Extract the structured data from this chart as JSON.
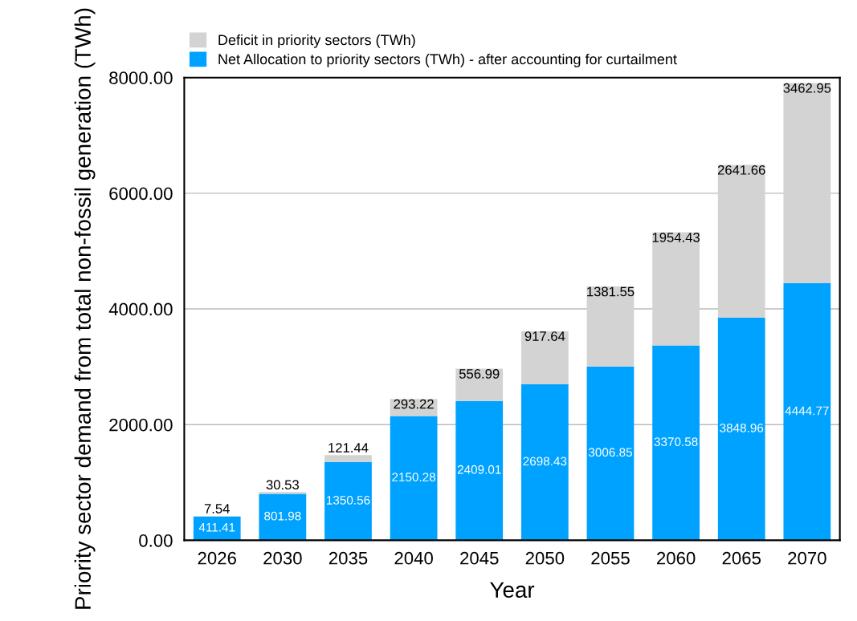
{
  "chart_data": {
    "type": "bar",
    "stacked": true,
    "xlabel": "Year",
    "ylabel": "Priority sector demand from total non-fossil generation (TWh)",
    "categories": [
      "2026",
      "2030",
      "2035",
      "2040",
      "2045",
      "2050",
      "2055",
      "2060",
      "2065",
      "2070"
    ],
    "series": [
      {
        "name": "Net Allocation to priority sectors (TWh) - after accounting for curtailment",
        "color": "#00a2ff",
        "values": [
          411.41,
          801.98,
          1350.56,
          2150.28,
          2409.01,
          2698.43,
          3006.85,
          3370.58,
          3848.96,
          4444.77
        ]
      },
      {
        "name": "Deficit in priority sectors (TWh)",
        "color": "#d3d3d3",
        "values": [
          7.54,
          30.53,
          121.44,
          293.22,
          556.99,
          917.64,
          1381.55,
          1954.43,
          2641.66,
          3462.95
        ]
      }
    ],
    "ylim": [
      0,
      8000
    ],
    "yticks": [
      {
        "value": 0,
        "label": "0.00"
      },
      {
        "value": 2000,
        "label": "2000.00"
      },
      {
        "value": 4000,
        "label": "4000.00"
      },
      {
        "value": 6000,
        "label": "6000.00"
      },
      {
        "value": 8000,
        "label": "8000.00"
      }
    ],
    "grid": "y",
    "legend": "top",
    "data_labels": true
  }
}
